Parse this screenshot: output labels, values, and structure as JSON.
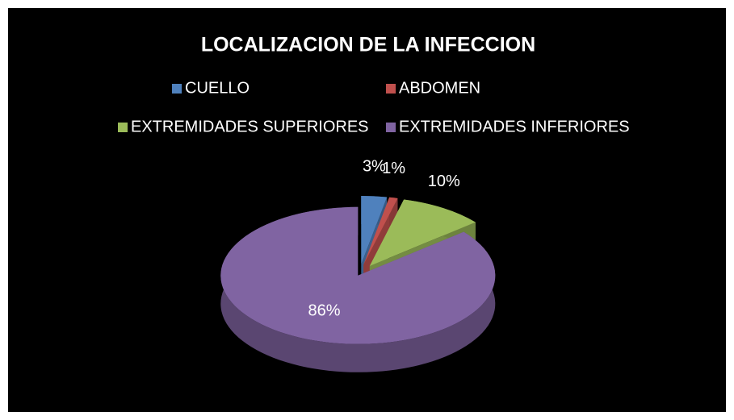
{
  "chart_data": {
    "type": "pie",
    "title": "LOCALIZACION DE LA INFECCION",
    "categories": [
      "CUELLO",
      "ABDOMEN",
      "EXTREMIDADES SUPERIORES",
      "EXTREMIDADES INFERIORES"
    ],
    "values": [
      3,
      1,
      10,
      86
    ],
    "value_labels": [
      "3%",
      "1%",
      "10%",
      "86%"
    ],
    "colors": [
      "#4f81bd",
      "#c0504d",
      "#9bbb59",
      "#8064a2"
    ]
  }
}
